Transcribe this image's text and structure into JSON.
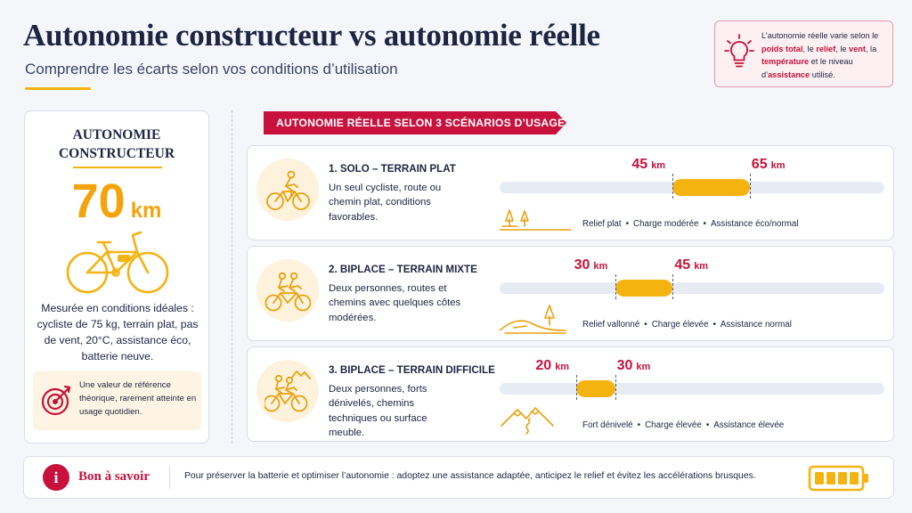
{
  "header": {
    "title": "Autonomie constructeur vs autonomie réelle",
    "subtitle": "Comprendre les écarts selon vos conditions d’utilisation"
  },
  "note": {
    "icon": "lightbulb-icon",
    "t1": "L’autonomie réelle varie selon le ",
    "poids": "poids total",
    "t2": ", le ",
    "relief": "relief",
    "t3": ", le ",
    "vent": "vent",
    "t4": ", la ",
    "temperature": "température",
    "t5": " et le niveau d’",
    "assistance": "assistance",
    "t6": " utilisé."
  },
  "manufacturer": {
    "heading_line1": "AUTONOMIE",
    "heading_line2": "CONSTRUCTEUR",
    "value": "70",
    "unit": "km",
    "icon": "ebike-icon",
    "description": "Mesurée en conditions idéales : cycliste de 75 kg, terrain plat, pas de vent, 20°C, assistance éco, batterie neuve.",
    "reference_icon": "target-icon",
    "reference_note": "Une valeur de référence théorique, rarement atteinte en usage quotidien."
  },
  "banner": "AUTONOMIE RÉELLE SELON 3 SCÉNARIOS D’USAGE",
  "scale_km": [
    0,
    100
  ],
  "scenarios": [
    {
      "title": "1. SOLO – TERRAIN PLAT",
      "description": "Un seul cycliste, route ou chemin plat, conditions favorables.",
      "min": "45",
      "max": "65",
      "unit": "km",
      "min_km": 45,
      "max_km": 65,
      "icon": "solo-cyclist-icon",
      "landscape_icon": "trees-flat-icon",
      "relief": "Relief plat",
      "charge": "Charge modérée",
      "assistance": "Assistance éco/normal"
    },
    {
      "title": "2. BIPLACE – TERRAIN MIXTE",
      "description": "Deux personnes, routes et chemins avec quelques côtes modérées.",
      "min": "30",
      "max": "45",
      "unit": "km",
      "min_km": 30,
      "max_km": 45,
      "icon": "tandem-cyclists-icon",
      "landscape_icon": "hills-tree-icon",
      "relief": "Relief vallonné",
      "charge": "Charge élevée",
      "assistance": "Assistance normal"
    },
    {
      "title": "3. BIPLACE – TERRAIN DIFFICILE",
      "description": "Deux personnes, forts dénivelés, chemins techniques ou surface meuble.",
      "min": "20",
      "max": "30",
      "unit": "km",
      "min_km": 20,
      "max_km": 30,
      "icon": "tandem-mountain-icon",
      "landscape_icon": "mountains-path-icon",
      "relief": "Fort dénivelé",
      "charge": "Charge élevée",
      "assistance": "Assistance élevée"
    }
  ],
  "footer": {
    "icon": "info-icon",
    "icon_glyph": "i",
    "label": "Bon à savoir",
    "text": "Pour préserver la batterie et optimiser l’autonomie : adoptez une assistance adaptée, anticipez le relief et évitez les accélérations brusques.",
    "battery_icon": "battery-full-icon"
  },
  "colors": {
    "navy": "#1d2542",
    "accent_red": "#c8113c",
    "accent_yellow": "#f5b312",
    "track": "#e6ebf4"
  }
}
